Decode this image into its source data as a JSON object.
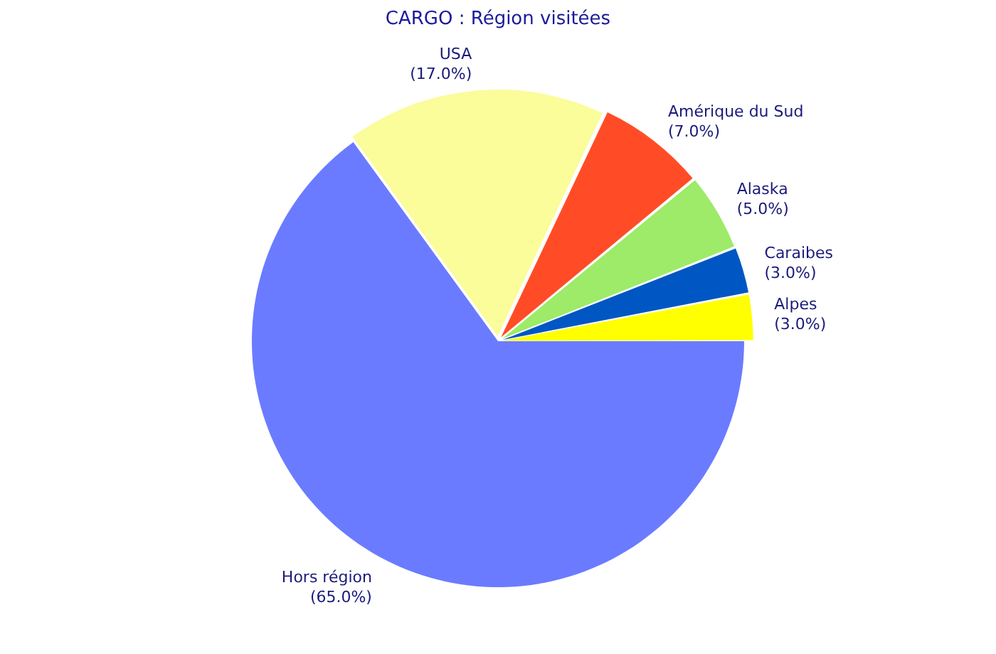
{
  "chart_data": {
    "type": "pie",
    "title": "CARGO : Région visitées",
    "categories": [
      "Hors région",
      "USA",
      "Amérique du Sud",
      "Alaska",
      "Caraibes",
      "Alpes"
    ],
    "values": [
      65,
      17,
      7,
      5,
      3,
      3
    ],
    "colors": [
      "#6b7bff",
      "#fbfc9a",
      "#ff4c26",
      "#9deb68",
      "#0057c3",
      "#ffff00"
    ],
    "value_labels": [
      "(65.0%)",
      "(17.0%)",
      "(7.0%)",
      "(5.0%)",
      "(3.0%)",
      "(3.0%)"
    ],
    "legend": false
  }
}
